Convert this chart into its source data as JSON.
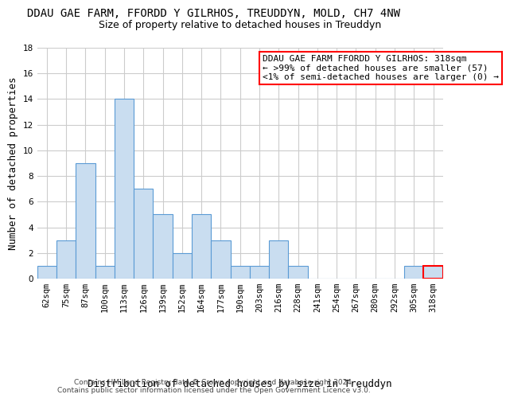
{
  "title": "DDAU GAE FARM, FFORDD Y GILRHOS, TREUDDYN, MOLD, CH7 4NW",
  "subtitle": "Size of property relative to detached houses in Treuddyn",
  "xlabel": "Distribution of detached houses by size in Treuddyn",
  "ylabel": "Number of detached properties",
  "categories": [
    "62sqm",
    "75sqm",
    "87sqm",
    "100sqm",
    "113sqm",
    "126sqm",
    "139sqm",
    "152sqm",
    "164sqm",
    "177sqm",
    "190sqm",
    "203sqm",
    "216sqm",
    "228sqm",
    "241sqm",
    "254sqm",
    "267sqm",
    "280sqm",
    "292sqm",
    "305sqm",
    "318sqm"
  ],
  "values": [
    1,
    3,
    9,
    1,
    14,
    7,
    5,
    2,
    5,
    3,
    1,
    1,
    3,
    1,
    0,
    0,
    0,
    0,
    0,
    1,
    1
  ],
  "bar_color": "#c9ddf0",
  "bar_edge_color": "#5b9bd5",
  "highlight_index": 20,
  "highlight_edge_color": "#ff0000",
  "ylim": [
    0,
    18
  ],
  "yticks": [
    0,
    2,
    4,
    6,
    8,
    10,
    12,
    14,
    16,
    18
  ],
  "annotation_text": "DDAU GAE FARM FFORDD Y GILRHOS: 318sqm\n← >99% of detached houses are smaller (57)\n<1% of semi-detached houses are larger (0) →",
  "annotation_box_color": "#ffffff",
  "annotation_box_edge": "#ff0000",
  "footer": "Contains HM Land Registry data © Crown copyright and database right 2024.\nContains public sector information licensed under the Open Government Licence v3.0.",
  "grid_color": "#cccccc",
  "background_color": "#ffffff",
  "title_fontsize": 10,
  "subtitle_fontsize": 9,
  "ylabel_fontsize": 9,
  "xlabel_fontsize": 9,
  "tick_fontsize": 7.5,
  "footer_fontsize": 6.5,
  "ann_fontsize": 8
}
